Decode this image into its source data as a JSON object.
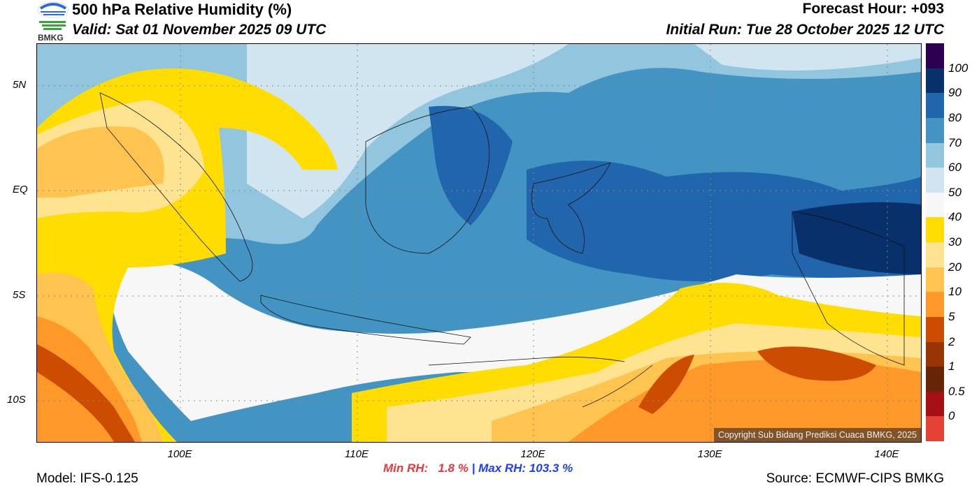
{
  "header": {
    "title": "500 hPa Relative Humidity (%)",
    "valid": "Valid: Sat 01 November 2025 09 UTC",
    "forecast_hour": "Forecast Hour: +093",
    "initial_run": "Initial Run: Tue 28 October 2025 12 UTC",
    "logo_text": "BMKG"
  },
  "map": {
    "lat_labels": [
      "5N",
      "EQ",
      "5S",
      "10S"
    ],
    "lon_labels": [
      "100E",
      "110E",
      "120E",
      "130E",
      "140E"
    ],
    "copyright": "Copyright Sub Bidang Prediksi Cuaca BMKG, 2025"
  },
  "colorbar": {
    "labels": [
      "100",
      "90",
      "80",
      "70",
      "60",
      "50",
      "40",
      "30",
      "20",
      "10",
      "5",
      "2",
      "1",
      "0.5",
      "0"
    ],
    "colors": [
      "#2d0050",
      "#08306b",
      "#2166ac",
      "#4393c3",
      "#92c5de",
      "#d1e5f0",
      "#f7f7f7",
      "#ffdd00",
      "#fee391",
      "#fec44f",
      "#fe9929",
      "#cc4c02",
      "#993404",
      "#662506",
      "#a50f15",
      "#e34234"
    ]
  },
  "stats": {
    "min": "Min RH:   1.8 %",
    "max": "| Max RH: 103.3 %",
    "min_color": "#e8383d",
    "max_color": "#1f3fff"
  },
  "footer": {
    "model": "Model: IFS-0.125",
    "source": "Source: ECMWF-CIPS BMKG"
  }
}
